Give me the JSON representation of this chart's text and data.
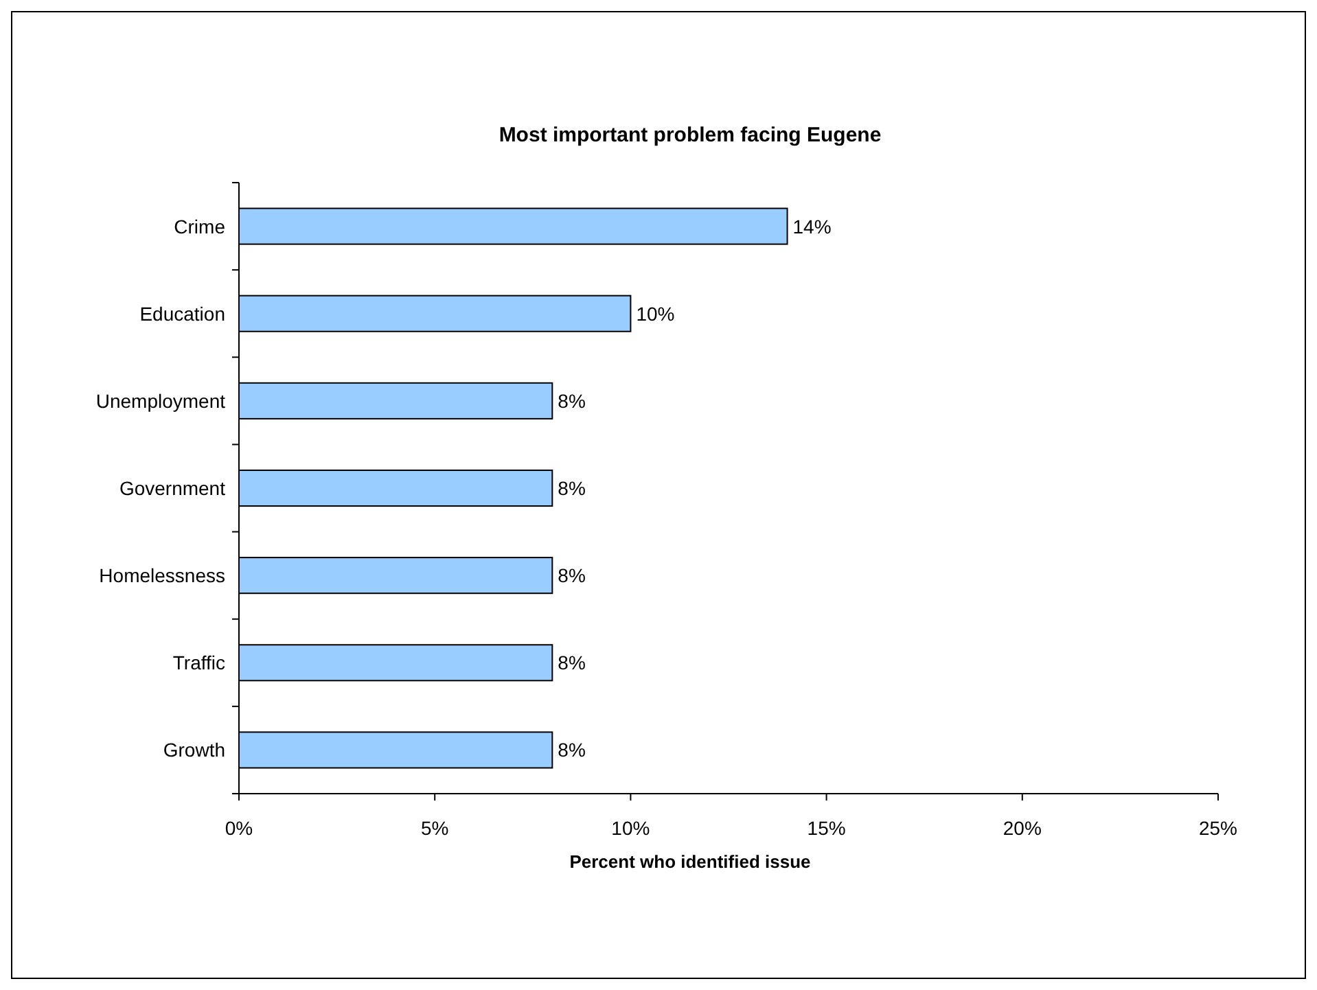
{
  "chart_data": {
    "type": "bar",
    "orientation": "horizontal",
    "title": "Most important problem facing Eugene",
    "xlabel": "Percent who identified issue",
    "categories": [
      "Crime",
      "Education",
      "Unemployment",
      "Government",
      "Homelessness",
      "Traffic",
      "Growth"
    ],
    "values": [
      14,
      10,
      8,
      8,
      8,
      8,
      8
    ],
    "value_labels": [
      "14%",
      "10%",
      "8%",
      "8%",
      "8%",
      "8%",
      "8%"
    ],
    "color": "#99ccff",
    "xlim": [
      0,
      25
    ],
    "xticks": [
      {
        "value": 0,
        "label": "0%"
      },
      {
        "value": 5,
        "label": "5%"
      },
      {
        "value": 10,
        "label": "10%"
      },
      {
        "value": 15,
        "label": "15%"
      },
      {
        "value": 20,
        "label": "20%"
      },
      {
        "value": 25,
        "label": "25%"
      }
    ],
    "grid": false
  }
}
